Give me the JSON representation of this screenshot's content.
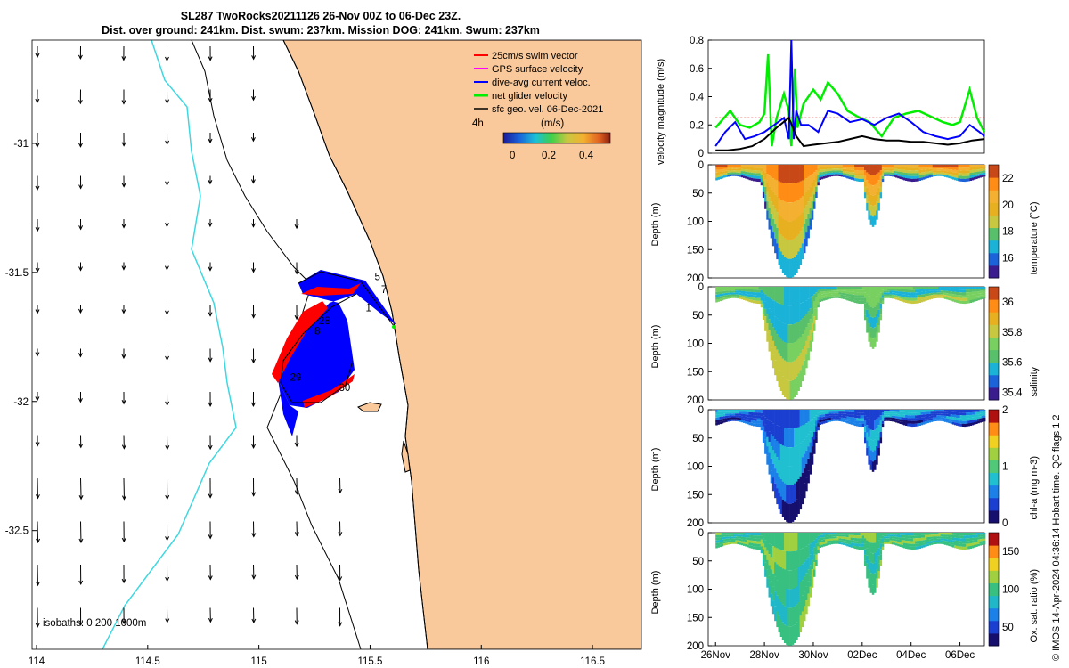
{
  "titles": {
    "line1": "SL287 TwoRocks20211126 26-Nov 00Z to 06-Dec 23Z.",
    "line2": "Dist. over ground: 241km. Dist. swum: 237km. Mission DOG: 241km. Swum: 237km"
  },
  "copyright": "© IMOS 14-Apr-2024 04:36:14 Hobart time. QC flags 1  2",
  "colors": {
    "land": "#f9c89b",
    "coast": "#000000",
    "isobath": "#3fd7e0",
    "swim": "#ff0000",
    "gps": "#ff00ff",
    "dac": "#0000ff",
    "net": "#00ee00",
    "sfc": "#000000"
  },
  "chart_data": [
    {
      "type": "map",
      "xaxis": {
        "ticks": [
          114,
          114.5,
          115,
          115.5,
          116,
          116.5
        ],
        "range": [
          113.98,
          116.72
        ]
      },
      "yaxis": {
        "ticks": [
          -31,
          -31.5,
          -32,
          -32.5
        ],
        "range": [
          -32.96,
          -30.6
        ]
      },
      "legend": {
        "entries": [
          "25cm/s swim vector",
          "GPS surface velocity",
          "dive-avg current veloc.",
          "net glider velocity",
          "sfc geo. vel. 06-Dec-2021"
        ],
        "time_label": "4h",
        "colorbar_title": "(m/s)",
        "colorbar_ticks": [
          "0",
          "0.2",
          "0.4"
        ],
        "colorbar_range": [
          0,
          0.5
        ]
      },
      "isobaths_label": "isobaths: 0   200  1000m",
      "day_labels": [
        {
          "text": "5",
          "lon": 115.52,
          "lat": -31.53
        },
        {
          "text": "7",
          "lon": 115.55,
          "lat": -31.58
        },
        {
          "text": "1",
          "lon": 115.48,
          "lat": -31.65
        },
        {
          "text": "28",
          "lon": 115.27,
          "lat": -31.7
        },
        {
          "text": "8",
          "lon": 115.25,
          "lat": -31.74
        },
        {
          "text": "29",
          "lon": 115.14,
          "lat": -31.92
        },
        {
          "text": "30",
          "lon": 115.36,
          "lat": -31.96
        }
      ]
    },
    {
      "type": "line",
      "ylabel": "velocity magnitude (m/s)",
      "ylim": [
        0,
        0.8
      ],
      "yticks": [
        0,
        0.2,
        0.4,
        0.6,
        0.8
      ],
      "xlim": [
        25.7,
        37
      ],
      "series": [
        {
          "key": "net",
          "x": [
            26,
            26.3,
            26.6,
            27,
            27.4,
            27.8,
            28,
            28.15,
            28.3,
            28.5,
            28.8,
            29,
            29.1,
            29.25,
            29.35,
            29.6,
            30,
            30.3,
            30.6,
            31,
            31.4,
            31.8,
            32.3,
            32.8,
            33.3,
            33.8,
            34.3,
            34.8,
            35.3,
            35.7,
            36,
            36.4,
            36.7,
            37
          ],
          "y": [
            0.18,
            0.24,
            0.3,
            0.2,
            0.18,
            0.22,
            0.28,
            0.7,
            0.05,
            0.25,
            0.42,
            0.3,
            0.05,
            0.6,
            0.18,
            0.35,
            0.45,
            0.38,
            0.5,
            0.42,
            0.3,
            0.26,
            0.22,
            0.12,
            0.25,
            0.28,
            0.3,
            0.26,
            0.22,
            0.2,
            0.22,
            0.45,
            0.25,
            0.15
          ]
        },
        {
          "key": "dac",
          "x": [
            26,
            26.4,
            26.8,
            27.2,
            27.6,
            28,
            28.4,
            28.8,
            29,
            29.1,
            29.2,
            29.3,
            29.5,
            29.8,
            30.2,
            30.6,
            31,
            31.5,
            32,
            32.5,
            33,
            33.5,
            34,
            34.5,
            35,
            35.5,
            36,
            36.4,
            36.8,
            37
          ],
          "y": [
            0.05,
            0.15,
            0.22,
            0.1,
            0.12,
            0.15,
            0.2,
            0.25,
            0.1,
            0.8,
            0.1,
            0.3,
            0.2,
            0.2,
            0.15,
            0.3,
            0.28,
            0.22,
            0.24,
            0.2,
            0.25,
            0.28,
            0.22,
            0.15,
            0.12,
            0.1,
            0.12,
            0.2,
            0.15,
            0.12
          ]
        },
        {
          "key": "sfc",
          "x": [
            26,
            26.5,
            27,
            27.5,
            28,
            28.5,
            29,
            29.3,
            29.6,
            30,
            30.5,
            31,
            31.5,
            32,
            32.5,
            33,
            33.5,
            34,
            34.5,
            35,
            35.5,
            36,
            36.5,
            37
          ],
          "y": [
            0.02,
            0.02,
            0.03,
            0.05,
            0.1,
            0.18,
            0.25,
            0.12,
            0.05,
            0.06,
            0.07,
            0.08,
            0.1,
            0.12,
            0.1,
            0.09,
            0.09,
            0.08,
            0.08,
            0.07,
            0.06,
            0.07,
            0.09,
            0.1
          ]
        },
        {
          "key": "swim",
          "x": [
            26,
            37
          ],
          "y": [
            0.25,
            0.25
          ]
        }
      ]
    },
    {
      "type": "heatmap",
      "panels": [
        {
          "ylabel": "Depth (m)",
          "clabel": "temperature (°C)",
          "cticks": [
            16,
            18,
            20,
            22
          ],
          "crange": [
            14.5,
            23
          ],
          "colors": [
            "#3a1c8f",
            "#1b63d9",
            "#1bb2d8",
            "#58c06a",
            "#c8c840",
            "#e6b020",
            "#f4b030",
            "#ff8c14",
            "#c84818"
          ]
        },
        {
          "ylabel": "Depth (m)",
          "clabel": "salinity",
          "cticks": [
            35.4,
            35.6,
            35.8,
            36
          ],
          "crange": [
            35.35,
            36.1
          ],
          "colors": [
            "#3a1c8f",
            "#1b63d9",
            "#1bb2d8",
            "#58c06a",
            "#78d060",
            "#c8c840",
            "#e6b020",
            "#ff8c14",
            "#c84818"
          ]
        },
        {
          "ylabel": "Depth (m)",
          "clabel": "chl-a (mg m-3)",
          "cticks": [
            0,
            1,
            2
          ],
          "crange": [
            0,
            2
          ],
          "colors": [
            "#160f6e",
            "#1b3fd0",
            "#1b80e8",
            "#20c0d0",
            "#50c878",
            "#a0d040",
            "#f0d020",
            "#ff8c14",
            "#b01010"
          ]
        },
        {
          "ylabel": "Depth (m)",
          "clabel": "Ox. sat. ratio (%)",
          "cticks": [
            50,
            100,
            150
          ],
          "crange": [
            25,
            175
          ],
          "colors": [
            "#160f6e",
            "#1b3fd0",
            "#1b80e8",
            "#20b8c8",
            "#38c080",
            "#a0d040",
            "#f0d020",
            "#ff8c14",
            "#b01010"
          ]
        }
      ],
      "ylim": [
        200,
        0
      ],
      "yticks": [
        0,
        50,
        100,
        150,
        200
      ],
      "xticks": [
        "26Nov",
        "28Nov",
        "30Nov",
        "02Dec",
        "04Dec",
        "06Dec"
      ]
    }
  ]
}
